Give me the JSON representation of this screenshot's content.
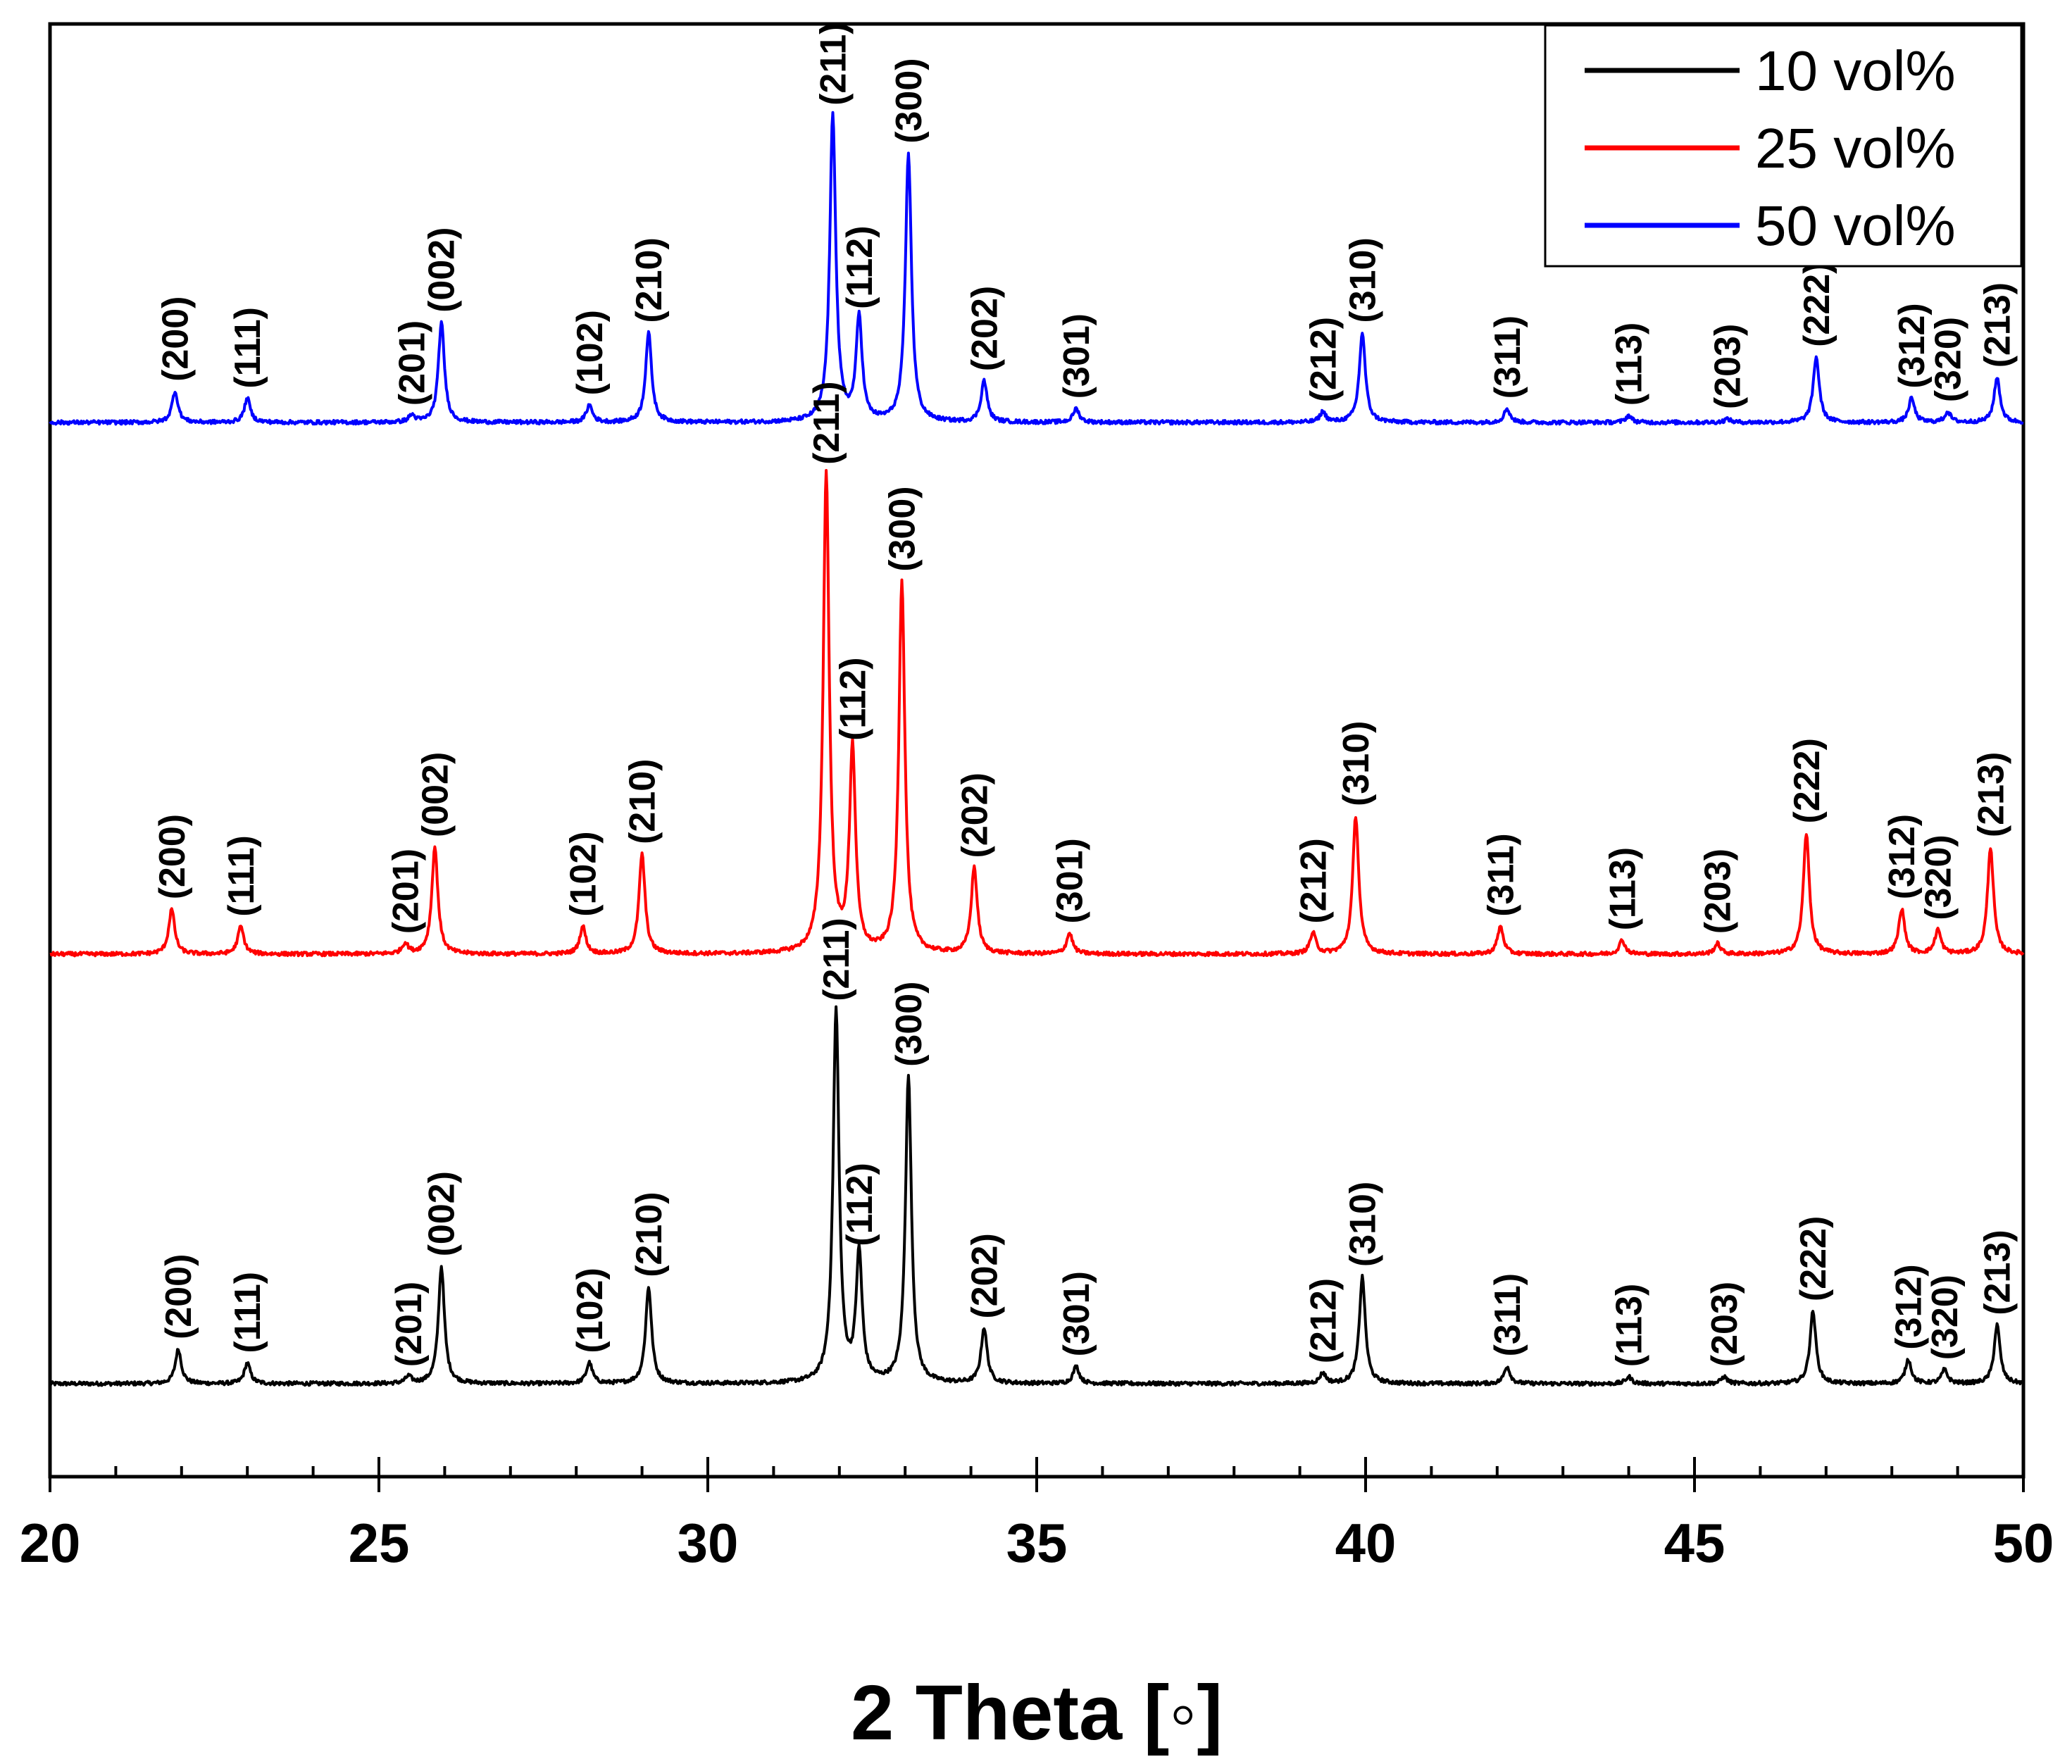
{
  "chart_data": {
    "type": "line",
    "title": "",
    "xlabel": "2 Theta [◦]",
    "ylabel": "",
    "xlim": [
      20,
      50
    ],
    "x_ticks": [
      "20",
      "25",
      "30",
      "35",
      "40",
      "45",
      "50"
    ],
    "legend": {
      "placement": "top-right",
      "entries": [
        {
          "name": "10 vol%",
          "color": "#000000"
        },
        {
          "name": "25 vol%",
          "color": "#ff0000"
        },
        {
          "name": "50 vol%",
          "color": "#0000ff"
        }
      ]
    },
    "series": [
      {
        "name": "10 vol%",
        "color": "#000000",
        "peaks": [
          {
            "hkl": "(200)",
            "x": 21.95,
            "h": 10
          },
          {
            "hkl": "(111)",
            "x": 23.0,
            "h": 6
          },
          {
            "hkl": "(201)",
            "x": 25.45,
            "h": 2
          },
          {
            "hkl": "(002)",
            "x": 25.95,
            "h": 34
          },
          {
            "hkl": "(102)",
            "x": 28.2,
            "h": 6
          },
          {
            "hkl": "(210)",
            "x": 29.1,
            "h": 28
          },
          {
            "hkl": "(211)",
            "x": 31.95,
            "h": 108
          },
          {
            "hkl": "(112)",
            "x": 32.3,
            "h": 37
          },
          {
            "hkl": "(300)",
            "x": 33.05,
            "h": 89
          },
          {
            "hkl": "(202)",
            "x": 34.2,
            "h": 16
          },
          {
            "hkl": "(301)",
            "x": 35.6,
            "h": 5
          },
          {
            "hkl": "(212)",
            "x": 39.35,
            "h": 3
          },
          {
            "hkl": "(310)",
            "x": 39.95,
            "h": 31
          },
          {
            "hkl": "(311)",
            "x": 42.15,
            "h": 5
          },
          {
            "hkl": "(113)",
            "x": 44.0,
            "h": 2
          },
          {
            "hkl": "(203)",
            "x": 45.45,
            "h": 2
          },
          {
            "hkl": "(222)",
            "x": 46.8,
            "h": 21
          },
          {
            "hkl": "(312)",
            "x": 48.25,
            "h": 7
          },
          {
            "hkl": "(320)",
            "x": 48.8,
            "h": 4
          },
          {
            "hkl": "(213)",
            "x": 49.6,
            "h": 17
          }
        ]
      },
      {
        "name": "25 vol%",
        "color": "#ff0000",
        "peaks": [
          {
            "hkl": "(200)",
            "x": 21.85,
            "h": 13
          },
          {
            "hkl": "(111)",
            "x": 22.9,
            "h": 8
          },
          {
            "hkl": "(201)",
            "x": 25.4,
            "h": 3
          },
          {
            "hkl": "(002)",
            "x": 25.85,
            "h": 31
          },
          {
            "hkl": "(102)",
            "x": 28.1,
            "h": 8
          },
          {
            "hkl": "(210)",
            "x": 29.0,
            "h": 29
          },
          {
            "hkl": "(211)",
            "x": 31.8,
            "h": 139
          },
          {
            "hkl": "(112)",
            "x": 32.2,
            "h": 59
          },
          {
            "hkl": "(300)",
            "x": 32.95,
            "h": 108
          },
          {
            "hkl": "(202)",
            "x": 34.05,
            "h": 25
          },
          {
            "hkl": "(301)",
            "x": 35.5,
            "h": 6
          },
          {
            "hkl": "(212)",
            "x": 39.2,
            "h": 6
          },
          {
            "hkl": "(310)",
            "x": 39.85,
            "h": 40
          },
          {
            "hkl": "(311)",
            "x": 42.05,
            "h": 8
          },
          {
            "hkl": "(113)",
            "x": 43.9,
            "h": 4
          },
          {
            "hkl": "(203)",
            "x": 45.35,
            "h": 3
          },
          {
            "hkl": "(222)",
            "x": 46.7,
            "h": 35
          },
          {
            "hkl": "(312)",
            "x": 48.15,
            "h": 13
          },
          {
            "hkl": "(320)",
            "x": 48.7,
            "h": 7
          },
          {
            "hkl": "(213)",
            "x": 49.5,
            "h": 31
          }
        ]
      },
      {
        "name": "50 vol%",
        "color": "#0000ff",
        "peaks": [
          {
            "hkl": "(200)",
            "x": 21.9,
            "h": 9
          },
          {
            "hkl": "(111)",
            "x": 23.0,
            "h": 7
          },
          {
            "hkl": "(201)",
            "x": 25.5,
            "h": 2
          },
          {
            "hkl": "(002)",
            "x": 25.95,
            "h": 29
          },
          {
            "hkl": "(102)",
            "x": 28.2,
            "h": 5
          },
          {
            "hkl": "(210)",
            "x": 29.1,
            "h": 26
          },
          {
            "hkl": "(211)",
            "x": 31.9,
            "h": 89
          },
          {
            "hkl": "(112)",
            "x": 32.3,
            "h": 30
          },
          {
            "hkl": "(300)",
            "x": 33.05,
            "h": 78
          },
          {
            "hkl": "(202)",
            "x": 34.2,
            "h": 12
          },
          {
            "hkl": "(301)",
            "x": 35.6,
            "h": 4
          },
          {
            "hkl": "(212)",
            "x": 39.35,
            "h": 3
          },
          {
            "hkl": "(310)",
            "x": 39.95,
            "h": 26
          },
          {
            "hkl": "(311)",
            "x": 42.15,
            "h": 4
          },
          {
            "hkl": "(113)",
            "x": 44.0,
            "h": 2
          },
          {
            "hkl": "(203)",
            "x": 45.5,
            "h": 1
          },
          {
            "hkl": "(222)",
            "x": 46.85,
            "h": 19
          },
          {
            "hkl": "(312)",
            "x": 48.3,
            "h": 7
          },
          {
            "hkl": "(320)",
            "x": 48.85,
            "h": 3
          },
          {
            "hkl": "(213)",
            "x": 49.6,
            "h": 13
          }
        ]
      }
    ]
  }
}
